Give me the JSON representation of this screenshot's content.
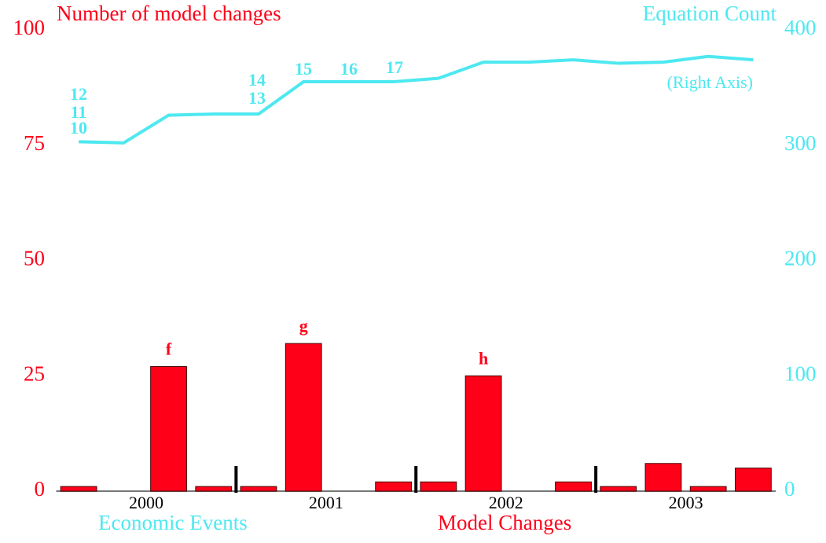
{
  "chart_data": {
    "type": "bar",
    "title": "Number of model changes",
    "y2_title": "Equation Count",
    "y2_note": "(Right Axis)",
    "legend_left": "Economic Events",
    "legend_right": "Model Changes",
    "categories": [
      null,
      null,
      null,
      null,
      null,
      null,
      null,
      null,
      null,
      null,
      null,
      null,
      null,
      null,
      null,
      null
    ],
    "year_labels": [
      "2000",
      "2001",
      "2002",
      "2003"
    ],
    "ylim": [
      0,
      100
    ],
    "yticks": [
      0,
      25,
      50,
      75,
      100
    ],
    "y2lim": [
      0,
      400
    ],
    "y2ticks": [
      0,
      100,
      200,
      300,
      400
    ],
    "series": [
      {
        "name": "Model Changes",
        "color": "#ff0019",
        "values": [
          1,
          0,
          27,
          1,
          1,
          32,
          0,
          2,
          2,
          25,
          0,
          2,
          1,
          6,
          1,
          5
        ]
      },
      {
        "name": "Equation Count",
        "color": "#4de8f0",
        "axis": "y2",
        "values": [
          303,
          302,
          326,
          327,
          327,
          355,
          355,
          355,
          358,
          372,
          372,
          374,
          371,
          372,
          377,
          374
        ]
      }
    ],
    "bar_annotations": [
      "f",
      "g",
      "h"
    ],
    "line_annotations": [
      "10",
      "11",
      "12",
      "13",
      "14",
      "15",
      "16",
      "17"
    ]
  }
}
